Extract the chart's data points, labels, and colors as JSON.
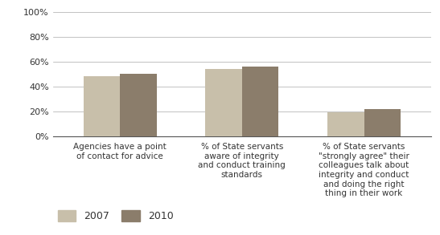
{
  "categories": [
    "Agencies have a point\nof contact for advice",
    "% of State servants\naware of integrity\nand conduct training\nstandards",
    "% of State servants\n\"strongly agree\" their\ncolleagues talk about\nintegrity and conduct\nand doing the right\nthing in their work"
  ],
  "values_2007": [
    0.48,
    0.54,
    0.19
  ],
  "values_2010": [
    0.5,
    0.56,
    0.22
  ],
  "color_2007": "#c8bfaa",
  "color_2010": "#8b7d6b",
  "ylim": [
    0,
    1.0
  ],
  "yticks": [
    0,
    0.2,
    0.4,
    0.6,
    0.8,
    1.0
  ],
  "ytick_labels": [
    "0%",
    "20%",
    "40%",
    "60%",
    "80%",
    "100%"
  ],
  "legend_labels": [
    "2007",
    "2010"
  ],
  "bar_width": 0.3,
  "background_color": "#ffffff",
  "plot_bg_color": "#ffffff",
  "grid_color": "#aaaaaa",
  "axis_color": "#555555",
  "tick_label_fontsize": 8,
  "legend_fontsize": 9,
  "category_fontsize": 7.5
}
